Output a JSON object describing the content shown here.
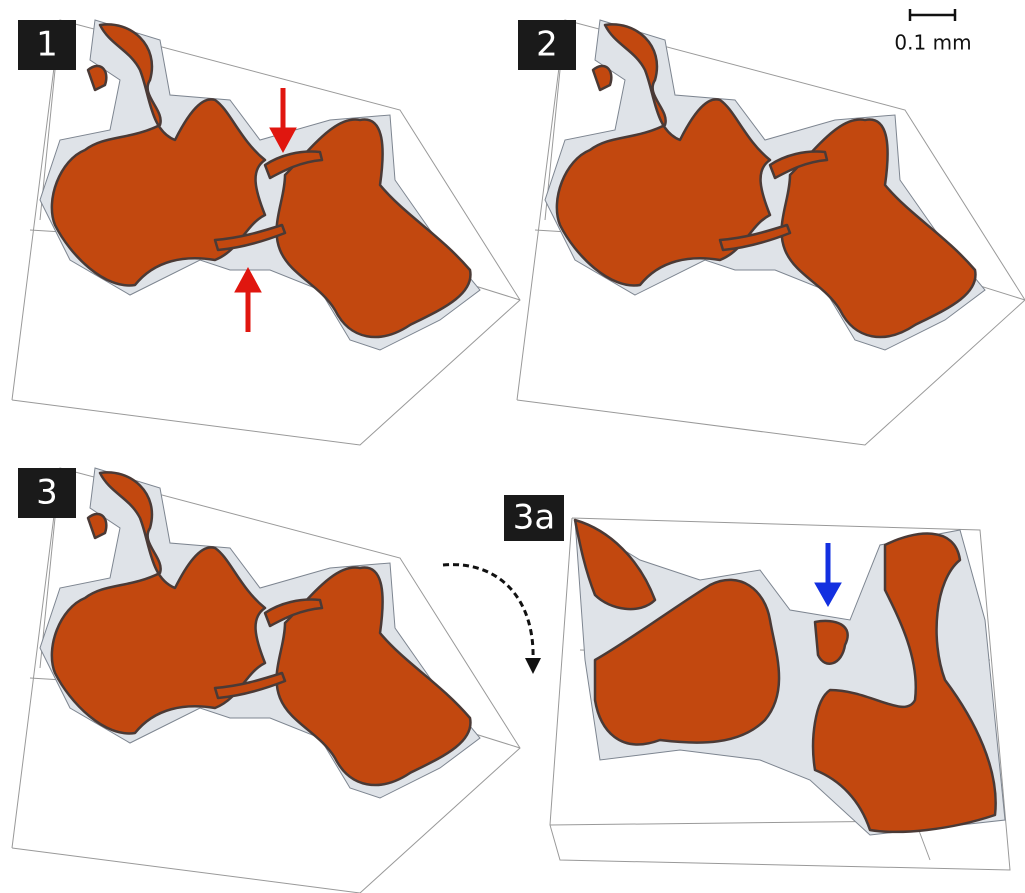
{
  "panels": [
    {
      "label": "1"
    },
    {
      "label": "2"
    },
    {
      "label": "3"
    },
    {
      "label": "3a"
    }
  ],
  "scale_bar": {
    "label": "0.1 mm"
  }
}
